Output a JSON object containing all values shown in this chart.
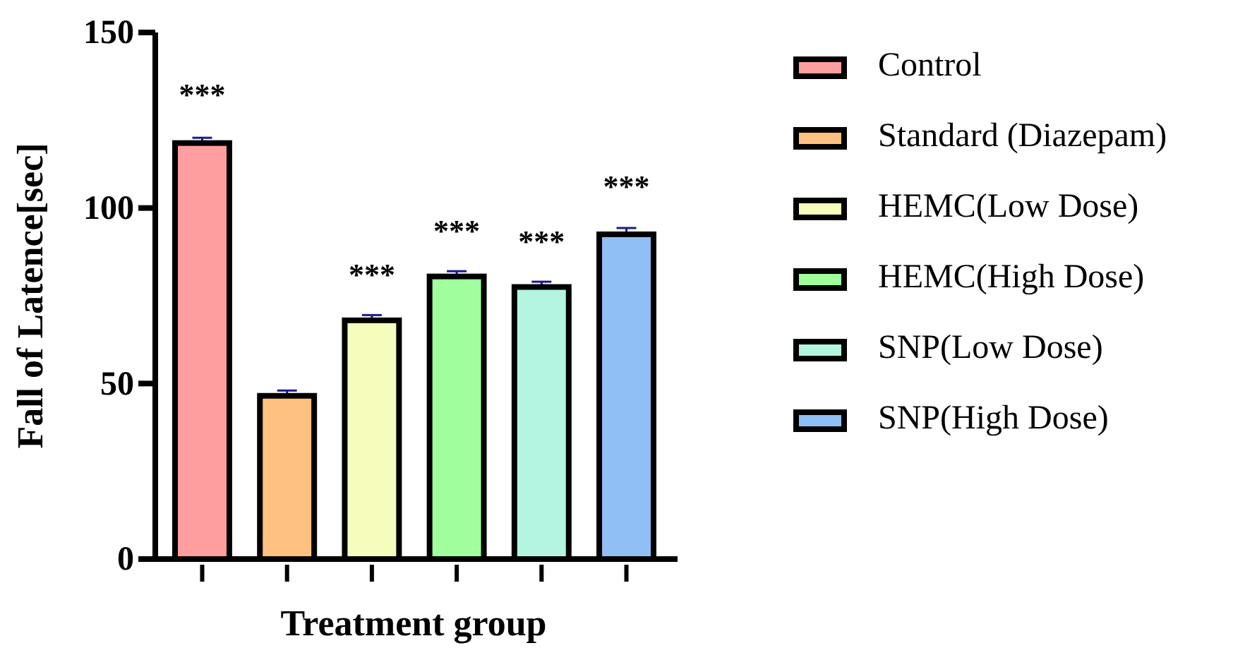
{
  "chart_data": {
    "type": "bar",
    "stacked": true,
    "xlabel": "Treatment group",
    "ylabel": "Fall of Latence[sec]",
    "categories": [
      null,
      null,
      null,
      null,
      null,
      null
    ],
    "series": [
      {
        "name": "Control",
        "color": "#ff9e9e",
        "values": [
          118.5,
          null,
          null,
          null,
          null,
          null
        ],
        "errors": [
          1.5,
          null,
          null,
          null,
          null,
          null
        ]
      },
      {
        "name": "Standard (Diazepam)",
        "color": "#ffc080",
        "values": [
          null,
          46.5,
          null,
          null,
          null,
          null
        ],
        "errors": [
          null,
          1.5,
          null,
          null,
          null,
          null
        ]
      },
      {
        "name": "HEMC(Low Dose)",
        "color": "#f5fcbc",
        "values": [
          null,
          null,
          68,
          null,
          null,
          null
        ],
        "errors": [
          null,
          null,
          1.5,
          null,
          null,
          null
        ]
      },
      {
        "name": "HEMC(High Dose)",
        "color": "#a0fe9c",
        "values": [
          null,
          null,
          null,
          80.5,
          null,
          null
        ],
        "errors": [
          null,
          null,
          null,
          1.5,
          null,
          null
        ]
      },
      {
        "name": "SNP(Low Dose)",
        "color": "#b3f5e0",
        "values": [
          null,
          null,
          null,
          null,
          77.5,
          null
        ],
        "errors": [
          null,
          null,
          null,
          null,
          1.5,
          null
        ]
      },
      {
        "name": "SNP(High Dose)",
        "color": "#8fbff5",
        "values": [
          null,
          null,
          null,
          null,
          null,
          92.5
        ],
        "errors": [
          null,
          null,
          null,
          null,
          null,
          1.8
        ]
      }
    ],
    "ylim": [
      0,
      150
    ],
    "yticks": [
      0,
      50,
      100,
      150
    ],
    "tick_labels": "y",
    "legend": "right",
    "grid": false,
    "annotations": [
      "***",
      "***",
      "***",
      "***",
      "***"
    ]
  }
}
